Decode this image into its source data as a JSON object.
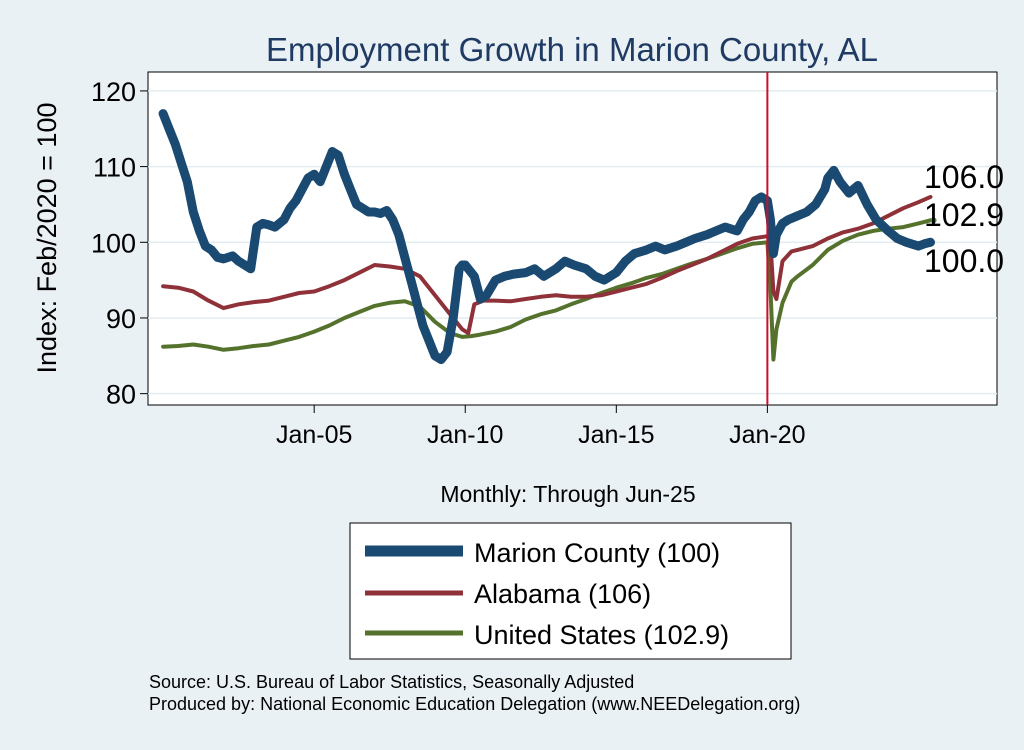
{
  "chart_data": {
    "type": "line",
    "title": "Employment Growth in Marion  County, AL",
    "xlabel": "Monthly: Through Jun-25",
    "ylabel": "Index: Feb/2020 = 100",
    "xlim": [
      1999.5,
      2027.6
    ],
    "ylim": [
      78.5,
      122.5
    ],
    "yticks": [
      80,
      90,
      100,
      110,
      120
    ],
    "ytick_labels": [
      "80",
      "90",
      "100",
      "110",
      "120"
    ],
    "xticks": [
      2005,
      2010,
      2015,
      2020
    ],
    "xtick_labels": [
      "Jan-05",
      "Jan-10",
      "Jan-15",
      "Jan-20"
    ],
    "vline_x": 2020.0,
    "colors": {
      "background": "#eaf1f5",
      "plot_bg": "#ffffff",
      "grid": "#e3ecf0",
      "title": "#1f3a63",
      "vline": "#c8102e",
      "marion": "#1a4a72",
      "alabama": "#8f3139",
      "us": "#55722c"
    },
    "series": [
      {
        "name": "Marion  County",
        "legend_label": "Marion  County (100)",
        "end_label": "100.0",
        "x": [
          2000.0,
          2000.2,
          2000.4,
          2000.6,
          2000.8,
          2001.0,
          2001.2,
          2001.4,
          2001.6,
          2001.8,
          2002.0,
          2002.3,
          2002.5,
          2002.7,
          2002.9,
          2003.1,
          2003.3,
          2003.5,
          2003.7,
          2004.0,
          2004.2,
          2004.4,
          2004.6,
          2004.8,
          2005.0,
          2005.2,
          2005.4,
          2005.6,
          2005.8,
          2006.0,
          2006.2,
          2006.4,
          2006.6,
          2006.8,
          2007.0,
          2007.2,
          2007.4,
          2007.6,
          2007.8,
          2008.0,
          2008.2,
          2008.4,
          2008.6,
          2008.8,
          2009.0,
          2009.2,
          2009.4,
          2009.6,
          2009.8,
          2009.9,
          2010.0,
          2010.1,
          2010.3,
          2010.5,
          2010.7,
          2011.0,
          2011.3,
          2011.6,
          2012.0,
          2012.3,
          2012.6,
          2013.0,
          2013.3,
          2013.6,
          2014.0,
          2014.3,
          2014.6,
          2015.0,
          2015.3,
          2015.6,
          2016.0,
          2016.3,
          2016.6,
          2017.0,
          2017.3,
          2017.6,
          2018.0,
          2018.3,
          2018.6,
          2019.0,
          2019.2,
          2019.4,
          2019.6,
          2019.8,
          2020.0,
          2020.1,
          2020.2,
          2020.3,
          2020.5,
          2020.7,
          2021.0,
          2021.3,
          2021.6,
          2021.9,
          2022.0,
          2022.2,
          2022.4,
          2022.7,
          2023.0,
          2023.3,
          2023.6,
          2024.0,
          2024.3,
          2024.6,
          2025.0,
          2025.2,
          2025.4
        ],
        "values": [
          117.0,
          115.0,
          113.0,
          110.5,
          108.0,
          104.0,
          101.5,
          99.5,
          99.0,
          98.0,
          97.8,
          98.2,
          97.5,
          97.0,
          96.5,
          102.0,
          102.5,
          102.3,
          102.0,
          103.0,
          104.5,
          105.5,
          107.0,
          108.5,
          109.0,
          108.0,
          110.0,
          112.0,
          111.5,
          109.0,
          107.0,
          105.0,
          104.5,
          104.0,
          104.0,
          103.8,
          104.2,
          103.0,
          101.0,
          98.0,
          95.0,
          92.0,
          89.0,
          87.0,
          85.0,
          84.5,
          85.5,
          90.0,
          96.5,
          97.0,
          97.0,
          96.5,
          95.5,
          92.5,
          93.0,
          95.0,
          95.5,
          95.8,
          96.0,
          96.5,
          95.5,
          96.5,
          97.5,
          97.0,
          96.5,
          95.5,
          95.0,
          96.0,
          97.5,
          98.5,
          99.0,
          99.5,
          99.0,
          99.5,
          100.0,
          100.5,
          101.0,
          101.5,
          102.0,
          101.5,
          103.0,
          104.0,
          105.5,
          106.0,
          105.5,
          103.0,
          98.5,
          101.0,
          102.5,
          103.0,
          103.5,
          104.0,
          105.0,
          107.0,
          108.5,
          109.5,
          108.0,
          106.5,
          107.5,
          105.0,
          103.0,
          101.5,
          100.5,
          100.0,
          99.5,
          99.8,
          100.0
        ]
      },
      {
        "name": "Alabama",
        "legend_label": "Alabama (106)",
        "end_label": "106.0",
        "x": [
          2000.0,
          2000.5,
          2001.0,
          2001.5,
          2002.0,
          2002.5,
          2003.0,
          2003.5,
          2004.0,
          2004.5,
          2005.0,
          2005.5,
          2006.0,
          2006.5,
          2007.0,
          2007.5,
          2008.0,
          2008.5,
          2009.0,
          2009.5,
          2009.9,
          2010.1,
          2010.3,
          2010.6,
          2011.0,
          2011.5,
          2012.0,
          2012.5,
          2013.0,
          2013.5,
          2014.0,
          2014.5,
          2015.0,
          2015.5,
          2016.0,
          2016.5,
          2017.0,
          2017.5,
          2018.0,
          2018.5,
          2019.0,
          2019.5,
          2020.0,
          2020.1,
          2020.2,
          2020.3,
          2020.5,
          2020.8,
          2021.0,
          2021.5,
          2022.0,
          2022.5,
          2023.0,
          2023.5,
          2024.0,
          2024.5,
          2025.0,
          2025.4
        ],
        "values": [
          94.2,
          94.0,
          93.5,
          92.3,
          91.3,
          91.8,
          92.1,
          92.3,
          92.8,
          93.3,
          93.5,
          94.2,
          95.0,
          96.0,
          97.0,
          96.8,
          96.5,
          95.5,
          93.0,
          90.5,
          88.5,
          88.0,
          91.8,
          92.3,
          92.3,
          92.2,
          92.5,
          92.8,
          93.0,
          92.8,
          92.8,
          93.0,
          93.5,
          94.0,
          94.5,
          95.3,
          96.2,
          97.0,
          97.8,
          98.8,
          99.8,
          100.5,
          100.8,
          100.0,
          93.5,
          92.5,
          97.5,
          98.8,
          99.0,
          99.5,
          100.5,
          101.3,
          101.8,
          102.5,
          103.5,
          104.5,
          105.3,
          106.0
        ]
      },
      {
        "name": "United States",
        "legend_label": "United States (102.9)",
        "end_label": "102.9",
        "x": [
          2000.0,
          2000.5,
          2001.0,
          2001.5,
          2002.0,
          2002.5,
          2003.0,
          2003.5,
          2004.0,
          2004.5,
          2005.0,
          2005.5,
          2006.0,
          2006.5,
          2007.0,
          2007.5,
          2008.0,
          2008.5,
          2009.0,
          2009.5,
          2009.9,
          2010.2,
          2010.5,
          2011.0,
          2011.5,
          2012.0,
          2012.5,
          2013.0,
          2013.5,
          2014.0,
          2014.5,
          2015.0,
          2015.5,
          2016.0,
          2016.5,
          2017.0,
          2017.5,
          2018.0,
          2018.5,
          2019.0,
          2019.5,
          2020.0,
          2020.1,
          2020.2,
          2020.3,
          2020.5,
          2020.8,
          2021.0,
          2021.5,
          2022.0,
          2022.5,
          2023.0,
          2023.5,
          2024.0,
          2024.5,
          2025.0,
          2025.4
        ],
        "values": [
          86.2,
          86.3,
          86.5,
          86.2,
          85.8,
          86.0,
          86.3,
          86.5,
          87.0,
          87.5,
          88.2,
          89.0,
          90.0,
          90.8,
          91.6,
          92.0,
          92.2,
          91.5,
          89.5,
          88.0,
          87.5,
          87.6,
          87.8,
          88.2,
          88.8,
          89.8,
          90.5,
          91.0,
          91.8,
          92.5,
          93.3,
          94.0,
          94.6,
          95.3,
          95.8,
          96.5,
          97.2,
          97.8,
          98.5,
          99.2,
          99.8,
          100.0,
          94.0,
          84.5,
          88.5,
          92.0,
          94.8,
          95.5,
          97.0,
          99.0,
          100.2,
          101.0,
          101.5,
          101.8,
          102.0,
          102.5,
          102.9
        ]
      }
    ]
  },
  "source_line1": "Source: U.S. Bureau of Labor Statistics, Seasonally Adjusted",
  "source_line2": "Produced by: National Economic Education Delegation (www.NEEDelegation.org)"
}
